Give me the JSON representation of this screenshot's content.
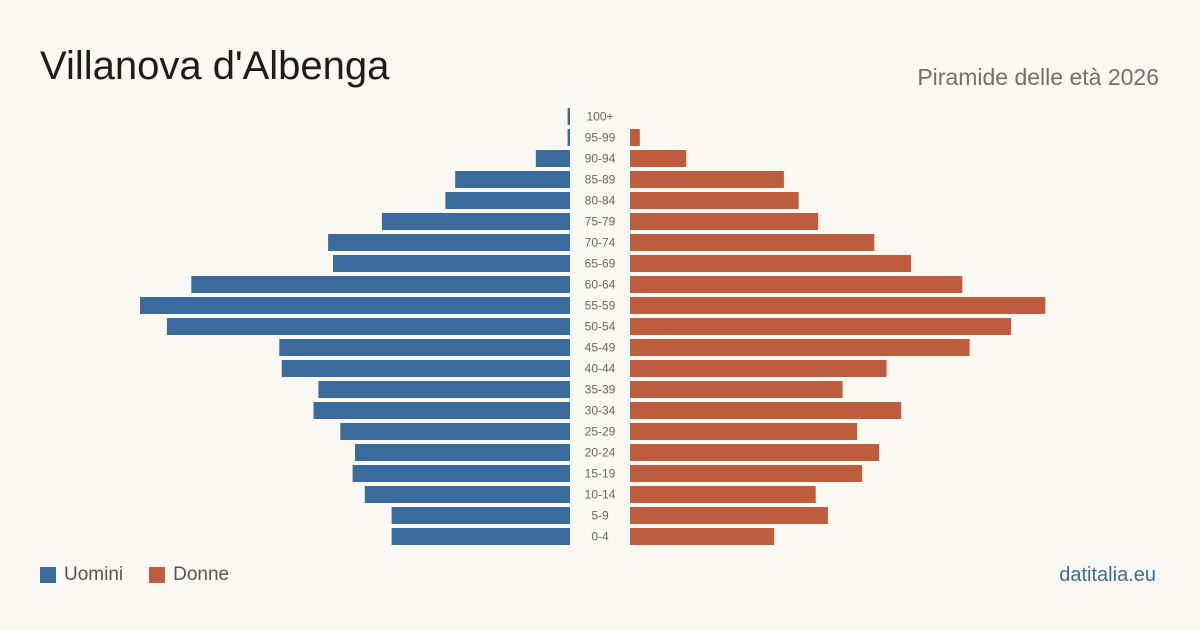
{
  "header": {
    "title": "Villanova d'Albenga",
    "subtitle": "Piramide delle età 2026"
  },
  "footer": {
    "source": "datitalia.eu"
  },
  "colors": {
    "men": "#3a6b9c",
    "women": "#bc5e3d",
    "age_label": "#666666"
  },
  "chart_data": {
    "type": "bar",
    "orientation": "horizontal-pyramid",
    "categories": [
      "100+",
      "95-99",
      "90-94",
      "85-89",
      "80-84",
      "75-79",
      "70-74",
      "65-69",
      "60-64",
      "55-59",
      "50-54",
      "45-49",
      "40-44",
      "35-39",
      "30-34",
      "25-29",
      "20-24",
      "15-19",
      "10-14",
      "5-9",
      "0-4"
    ],
    "series": [
      {
        "name": "Uomini",
        "color": "#3a6b9c",
        "values": [
          1,
          1,
          14,
          47,
          51,
          77,
          99,
          97,
          155,
          176,
          165,
          119,
          118,
          103,
          105,
          94,
          88,
          89,
          84,
          73,
          73
        ]
      },
      {
        "name": "Donne",
        "color": "#bc5e3d",
        "values": [
          0,
          4,
          23,
          63,
          69,
          77,
          100,
          115,
          136,
          170,
          156,
          139,
          105,
          87,
          111,
          93,
          102,
          95,
          76,
          81,
          59
        ]
      }
    ],
    "legend": "bottom-left",
    "grid": false
  }
}
